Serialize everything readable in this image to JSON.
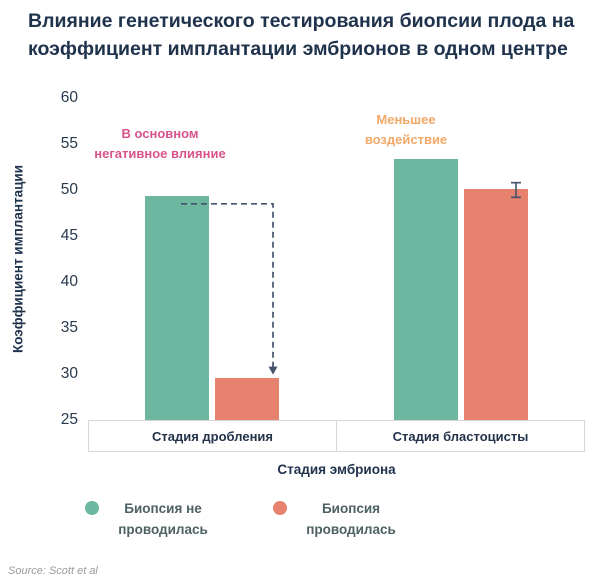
{
  "title": {
    "line1": "Влияние генетического тестирования биопсии плода на",
    "line2": "коэффициент имплантации эмбрионов в одном центре"
  },
  "chart_data": {
    "type": "bar",
    "categories": [
      "Стадия дробления",
      "Стадия бластоцисты"
    ],
    "series": [
      {
        "name": "Биопсия не проводилась",
        "color": "#6db7a1",
        "values": [
          49.3,
          53.4
        ]
      },
      {
        "name": "Биопсия проводилась",
        "color": "#e6826e",
        "values": [
          29.6,
          50.1
        ]
      }
    ],
    "title": "Влияние генетического тестирования биопсии плода на коэффициент имплантации эмбрионов в одном центре",
    "xlabel": "Стадия эмбриона",
    "ylabel": "Коэффициент имплантации",
    "ylim": [
      25,
      60
    ],
    "yticks": [
      25,
      30,
      35,
      40,
      45,
      50,
      55,
      60
    ],
    "grid": false,
    "legend_position": "bottom",
    "annotations": [
      {
        "text": "В основном негативное влияние",
        "color": "#d8538c",
        "target_group": "Стадия дробления"
      },
      {
        "text": "Меньшее воздействие",
        "color": "#f2a867",
        "target_group": "Стадия бластоцисты"
      }
    ],
    "connector_arrow": {
      "from_value": 48.5,
      "to_value": 29.6,
      "style": "dashed",
      "color": "#44536b"
    },
    "error_bar": {
      "series": "Биопсия проводилась",
      "category": "Стадия бластоцисты",
      "low": 49.2,
      "high": 50.8,
      "color": "#44536b"
    }
  },
  "source": "Source: Scott et al"
}
